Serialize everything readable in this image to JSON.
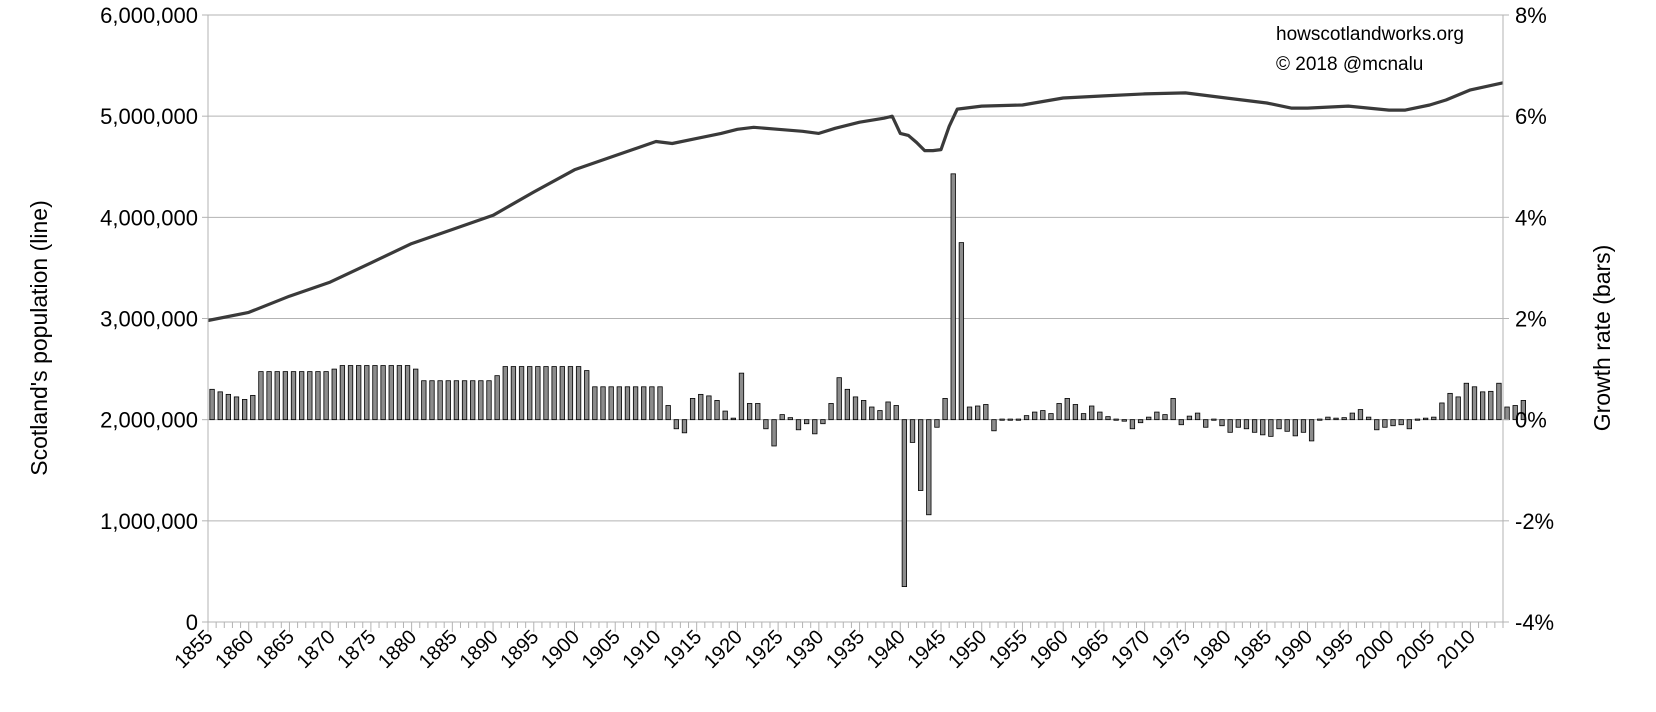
{
  "chart_data": {
    "type": "bar+line",
    "left_axis": {
      "label": "Scotland's population (line)",
      "ylim": [
        0,
        6000000
      ],
      "ticks": [
        0,
        1000000,
        2000000,
        3000000,
        4000000,
        5000000,
        6000000
      ],
      "tick_labels": [
        "0",
        "1,000,000",
        "2,000,000",
        "3,000,000",
        "4,000,000",
        "5,000,000",
        "6,000,000"
      ]
    },
    "right_axis": {
      "label": "Growth rate (bars)",
      "ylim": [
        -4,
        8
      ],
      "ticks": [
        -4,
        -2,
        0,
        2,
        4,
        6,
        8
      ],
      "tick_labels": [
        "-4%",
        "-2%",
        "0%",
        "2%",
        "4%",
        "6%",
        "8%"
      ]
    },
    "x_axis": {
      "range": [
        1855,
        2014
      ],
      "tick_labels": [
        "1855",
        "1860",
        "1865",
        "1870",
        "1875",
        "1880",
        "1885",
        "1890",
        "1895",
        "1900",
        "1905",
        "1910",
        "1915",
        "1920",
        "1925",
        "1930",
        "1935",
        "1940",
        "1945",
        "1950",
        "1955",
        "1960",
        "1965",
        "1970",
        "1975",
        "1980",
        "1985",
        "1990",
        "1995",
        "2000",
        "2005",
        "2010"
      ]
    },
    "grid": true,
    "annotations": [
      "howscotlandworks.org",
      "© 2018  @mcnalu"
    ],
    "colors": {
      "line": "#3a3a3a",
      "bar_fill": "#8c8c8c",
      "bar_stroke": "#000000",
      "grid": "#b3b3b3"
    },
    "growth_rate_bars": {
      "start_year": 1856,
      "values": [
        0.6,
        0.55,
        0.5,
        0.45,
        0.4,
        0.48,
        0.95,
        0.95,
        0.95,
        0.95,
        0.95,
        0.95,
        0.95,
        0.95,
        0.95,
        1.0,
        1.07,
        1.07,
        1.07,
        1.07,
        1.07,
        1.07,
        1.07,
        1.07,
        1.07,
        1.0,
        0.77,
        0.77,
        0.77,
        0.77,
        0.77,
        0.77,
        0.77,
        0.77,
        0.77,
        0.87,
        1.05,
        1.05,
        1.05,
        1.05,
        1.05,
        1.05,
        1.05,
        1.05,
        1.05,
        1.05,
        0.97,
        0.65,
        0.65,
        0.65,
        0.65,
        0.65,
        0.65,
        0.65,
        0.65,
        0.65,
        0.28,
        -0.18,
        -0.26,
        0.42,
        0.5,
        0.47,
        0.38,
        0.17,
        0.03,
        0.92,
        0.32,
        0.32,
        -0.18,
        -0.52,
        0.1,
        0.04,
        -0.2,
        -0.08,
        -0.28,
        -0.08,
        0.32,
        0.83,
        0.6,
        0.45,
        0.38,
        0.25,
        0.18,
        0.35,
        0.28,
        -3.3,
        -0.45,
        -1.4,
        -1.88,
        -0.15,
        0.42,
        4.86,
        3.5,
        0.25,
        0.27,
        0.3,
        -0.22,
        0.0,
        0.0,
        0.0,
        0.08,
        0.15,
        0.18,
        0.12,
        0.32,
        0.42,
        0.3,
        0.12,
        0.27,
        0.15,
        0.06,
        0.02,
        -0.03,
        -0.18,
        -0.06,
        0.05,
        0.15,
        0.1,
        0.42,
        -0.1,
        0.07,
        0.13,
        -0.15,
        0.0,
        -0.12,
        -0.25,
        -0.15,
        -0.18,
        -0.25,
        -0.3,
        -0.33,
        -0.18,
        -0.23,
        -0.32,
        -0.25,
        -0.42,
        0.02,
        0.05,
        0.03,
        0.04,
        0.13,
        0.2,
        0.05,
        -0.2,
        -0.15,
        -0.12,
        -0.1,
        -0.18,
        0.02,
        0.03,
        0.05,
        0.33,
        0.52,
        0.45,
        0.72,
        0.65,
        0.55,
        0.56,
        0.72,
        0.25,
        0.28,
        0.38
      ]
    },
    "population_line": {
      "points": [
        [
          1855,
          2980000
        ],
        [
          1860,
          3060000
        ],
        [
          1865,
          3220000
        ],
        [
          1870,
          3360000
        ],
        [
          1875,
          3550000
        ],
        [
          1880,
          3740000
        ],
        [
          1885,
          3880000
        ],
        [
          1890,
          4020000
        ],
        [
          1895,
          4250000
        ],
        [
          1900,
          4470000
        ],
        [
          1905,
          4610000
        ],
        [
          1910,
          4750000
        ],
        [
          1912,
          4730000
        ],
        [
          1915,
          4780000
        ],
        [
          1918,
          4830000
        ],
        [
          1920,
          4870000
        ],
        [
          1922,
          4890000
        ],
        [
          1925,
          4870000
        ],
        [
          1928,
          4850000
        ],
        [
          1930,
          4830000
        ],
        [
          1932,
          4880000
        ],
        [
          1935,
          4940000
        ],
        [
          1938,
          4980000
        ],
        [
          1939,
          5000000
        ],
        [
          1940,
          4830000
        ],
        [
          1941,
          4810000
        ],
        [
          1942,
          4740000
        ],
        [
          1943,
          4660000
        ],
        [
          1944,
          4660000
        ],
        [
          1945,
          4670000
        ],
        [
          1946,
          4900000
        ],
        [
          1947,
          5070000
        ],
        [
          1950,
          5100000
        ],
        [
          1955,
          5110000
        ],
        [
          1960,
          5180000
        ],
        [
          1965,
          5200000
        ],
        [
          1970,
          5220000
        ],
        [
          1975,
          5230000
        ],
        [
          1980,
          5180000
        ],
        [
          1985,
          5130000
        ],
        [
          1988,
          5080000
        ],
        [
          1990,
          5080000
        ],
        [
          1995,
          5100000
        ],
        [
          2000,
          5060000
        ],
        [
          2002,
          5060000
        ],
        [
          2005,
          5110000
        ],
        [
          2007,
          5160000
        ],
        [
          2010,
          5260000
        ],
        [
          2014,
          5330000
        ]
      ]
    }
  }
}
